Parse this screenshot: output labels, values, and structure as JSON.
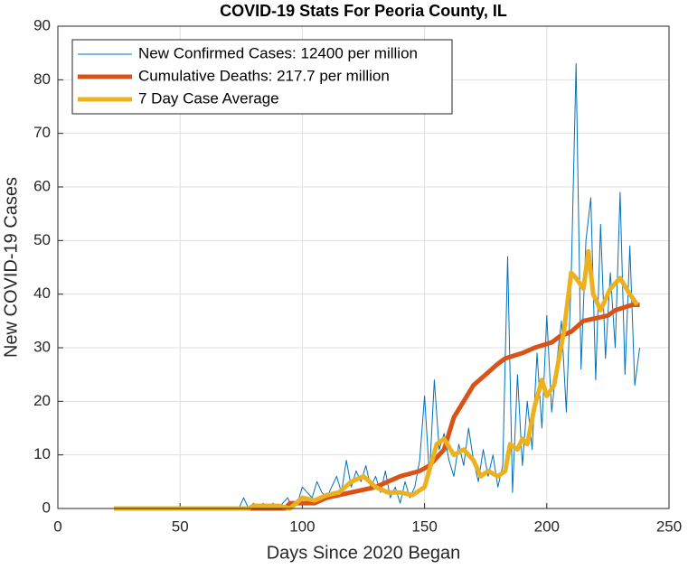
{
  "chart_data": {
    "type": "line",
    "title": "COVID-19 Stats For Peoria County, IL",
    "xlabel": "Days Since 2020 Began",
    "ylabel": "New COVID-19 Cases",
    "xlim": [
      0,
      250
    ],
    "xticks": [
      0,
      50,
      100,
      150,
      200,
      250
    ],
    "ylim": [
      0,
      90
    ],
    "yticks": [
      0,
      10,
      20,
      30,
      40,
      50,
      60,
      70,
      80,
      90
    ],
    "grid": true,
    "legend": "top-left",
    "series": [
      {
        "name": "New Confirmed Cases: 12400 per million",
        "color": "#0072bd",
        "width": 1,
        "x": [
          24,
          30,
          40,
          50,
          60,
          70,
          74,
          76,
          78,
          80,
          82,
          84,
          86,
          88,
          90,
          92,
          94,
          96,
          98,
          100,
          102,
          104,
          106,
          108,
          110,
          112,
          114,
          116,
          118,
          120,
          122,
          124,
          126,
          128,
          130,
          132,
          134,
          136,
          138,
          140,
          142,
          144,
          146,
          148,
          150,
          152,
          154,
          156,
          158,
          160,
          162,
          164,
          166,
          168,
          170,
          172,
          174,
          176,
          178,
          180,
          182,
          184,
          186,
          188,
          190,
          192,
          194,
          196,
          198,
          200,
          202,
          204,
          206,
          208,
          210,
          212,
          214,
          216,
          218,
          220,
          222,
          224,
          226,
          228,
          230,
          232,
          234,
          236,
          238
        ],
        "values": [
          0,
          0,
          0,
          0,
          0,
          0,
          0,
          2,
          0,
          1,
          0,
          1,
          0,
          1,
          0,
          1,
          2,
          0,
          1,
          4,
          3,
          2,
          5,
          3,
          2,
          4,
          6,
          3,
          9,
          4,
          7,
          5,
          8,
          4,
          6,
          3,
          7,
          2,
          4,
          1,
          5,
          2,
          4,
          9,
          21,
          6,
          24,
          11,
          14,
          9,
          6,
          12,
          8,
          15,
          9,
          5,
          11,
          6,
          10,
          4,
          8,
          47,
          3,
          25,
          8,
          20,
          11,
          29,
          15,
          36,
          18,
          27,
          35,
          18,
          43,
          83,
          26,
          50,
          58,
          24,
          53,
          28,
          44,
          30,
          59,
          25,
          49,
          23,
          30
        ]
      },
      {
        "name": "Cumulative Deaths: 217.7 per million",
        "color": "#d95319",
        "width": 5,
        "x": [
          23,
          93,
          95,
          105,
          110,
          120,
          130,
          135,
          140,
          148,
          152,
          158,
          162,
          166,
          170,
          175,
          180,
          183,
          190,
          195,
          202,
          205,
          210,
          215,
          225,
          228,
          235,
          238
        ],
        "values": [
          0,
          0,
          1,
          1,
          2,
          3,
          4,
          5,
          6,
          7,
          8,
          11,
          17,
          20,
          23,
          25,
          27,
          28,
          29,
          30,
          31,
          32,
          33,
          35,
          36,
          37,
          38,
          38
        ]
      },
      {
        "name": "7 Day Case Average",
        "color": "#edb120",
        "width": 5,
        "x": [
          23,
          78,
          80,
          90,
          95,
          100,
          105,
          110,
          115,
          120,
          125,
          130,
          135,
          140,
          145,
          150,
          155,
          158,
          162,
          166,
          170,
          173,
          176,
          180,
          183,
          185,
          188,
          190,
          192,
          195,
          198,
          200,
          203,
          207,
          210,
          212,
          215,
          217,
          219,
          222,
          226,
          230,
          234,
          237
        ],
        "values": [
          0,
          0,
          0.5,
          0.5,
          0,
          2,
          1.5,
          2.5,
          3,
          5,
          6,
          4,
          3,
          3,
          2.5,
          4,
          12,
          13,
          10,
          11,
          9,
          6,
          7,
          6,
          7,
          12,
          11,
          13,
          12,
          19,
          24,
          21,
          23,
          33,
          44,
          43,
          41,
          48,
          40,
          37,
          41,
          43,
          40,
          38
        ]
      }
    ]
  }
}
